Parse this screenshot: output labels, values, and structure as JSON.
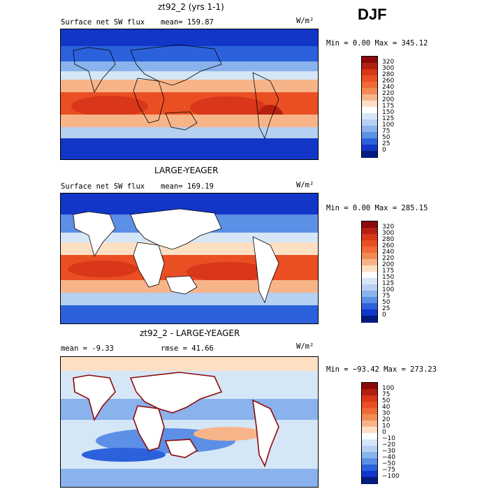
{
  "season": "DJF",
  "panels": [
    {
      "title": "zt92_2 (yrs 1-1)",
      "left_text": "Surface net SW flux",
      "stat_text": "mean= 159.87",
      "units": "W/m²",
      "minmax": "Min =    0.00 Max = 345.12",
      "colorbar": {
        "labels": [
          "320",
          "300",
          "280",
          "260",
          "240",
          "220",
          "200",
          "175",
          "150",
          "125",
          "100",
          "75",
          "50",
          "25",
          "0"
        ],
        "colors": [
          "#8c0a0a",
          "#b31f11",
          "#d9361a",
          "#ea4f23",
          "#f06a37",
          "#f38a55",
          "#f8b489",
          "#fde0c4",
          "#ffffff",
          "#d5e6f7",
          "#b6d0f2",
          "#8ab2ec",
          "#5c8fe6",
          "#2c61dc",
          "#1236c8",
          "#001c80"
        ]
      },
      "masked_land": false
    },
    {
      "title": "LARGE-YEAGER",
      "left_text": "Surface net SW flux",
      "stat_text": "mean= 169.19",
      "units": "W/m²",
      "minmax": "Min =    0.00 Max = 285.15",
      "colorbar": {
        "labels": [
          "320",
          "300",
          "280",
          "260",
          "240",
          "220",
          "200",
          "175",
          "150",
          "125",
          "100",
          "75",
          "50",
          "25",
          "0"
        ],
        "colors": [
          "#8c0a0a",
          "#b31f11",
          "#d9361a",
          "#ea4f23",
          "#f06a37",
          "#f38a55",
          "#f8b489",
          "#fde0c4",
          "#ffffff",
          "#d5e6f7",
          "#b6d0f2",
          "#8ab2ec",
          "#5c8fe6",
          "#2c61dc",
          "#1236c8",
          "#001c80"
        ]
      },
      "masked_land": true
    },
    {
      "title": "zt92_2 - LARGE-YEAGER",
      "left_text": "mean =   -9.33",
      "stat_text": "rmse =  41.66",
      "units": "W/m²",
      "minmax": "Min = −93.42 Max = 273.23",
      "colorbar": {
        "labels": [
          "100",
          "75",
          "50",
          "40",
          "30",
          "20",
          "10",
          "0",
          "−10",
          "−20",
          "−30",
          "−40",
          "−50",
          "−75",
          "−100"
        ],
        "colors": [
          "#8c0a0a",
          "#b31f11",
          "#d9361a",
          "#ea4f23",
          "#f06a37",
          "#f38a55",
          "#f8b489",
          "#fde0c4",
          "#ffffff",
          "#d5e6f7",
          "#b6d0f2",
          "#8ab2ec",
          "#5c8fe6",
          "#2c61dc",
          "#1236c8",
          "#001c80"
        ]
      },
      "masked_land": true
    }
  ]
}
